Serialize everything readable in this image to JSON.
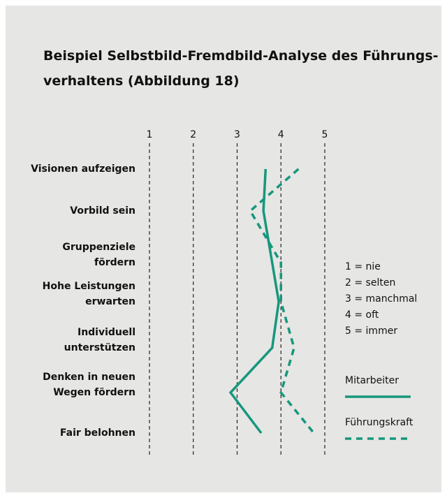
{
  "chart_data": {
    "type": "line",
    "title": "Beispiel Selbstbild-Fremdbild-Analyse des Führungs-\nverhaltens (Abbildung 18)",
    "categories": [
      "Visionen aufzeigen",
      "Vorbild sein",
      "Gruppenziele\nfördern",
      "Hohe Leistungen\nerwarten",
      "Individuell\nunterstützen",
      "Denken in neuen\nWegen fördern",
      "Fair belohnen"
    ],
    "series": [
      {
        "name": "Mitarbeiter",
        "color": "#16977c",
        "dash": false,
        "values": [
          3.65,
          3.6,
          3.8,
          3.95,
          3.8,
          2.85,
          3.55
        ]
      },
      {
        "name": "Führungskraft",
        "color": "#16977c",
        "dash": true,
        "values": [
          4.4,
          3.3,
          4.0,
          4.0,
          4.3,
          4.0,
          4.75
        ]
      }
    ],
    "xlim": [
      1,
      5
    ],
    "xticks": [
      1,
      2,
      3,
      4,
      5
    ],
    "grid": true,
    "scale_legend": [
      "1 = nie",
      "2 = selten",
      "3 = manchmal",
      "4 = oft",
      "5 = immer"
    ]
  }
}
